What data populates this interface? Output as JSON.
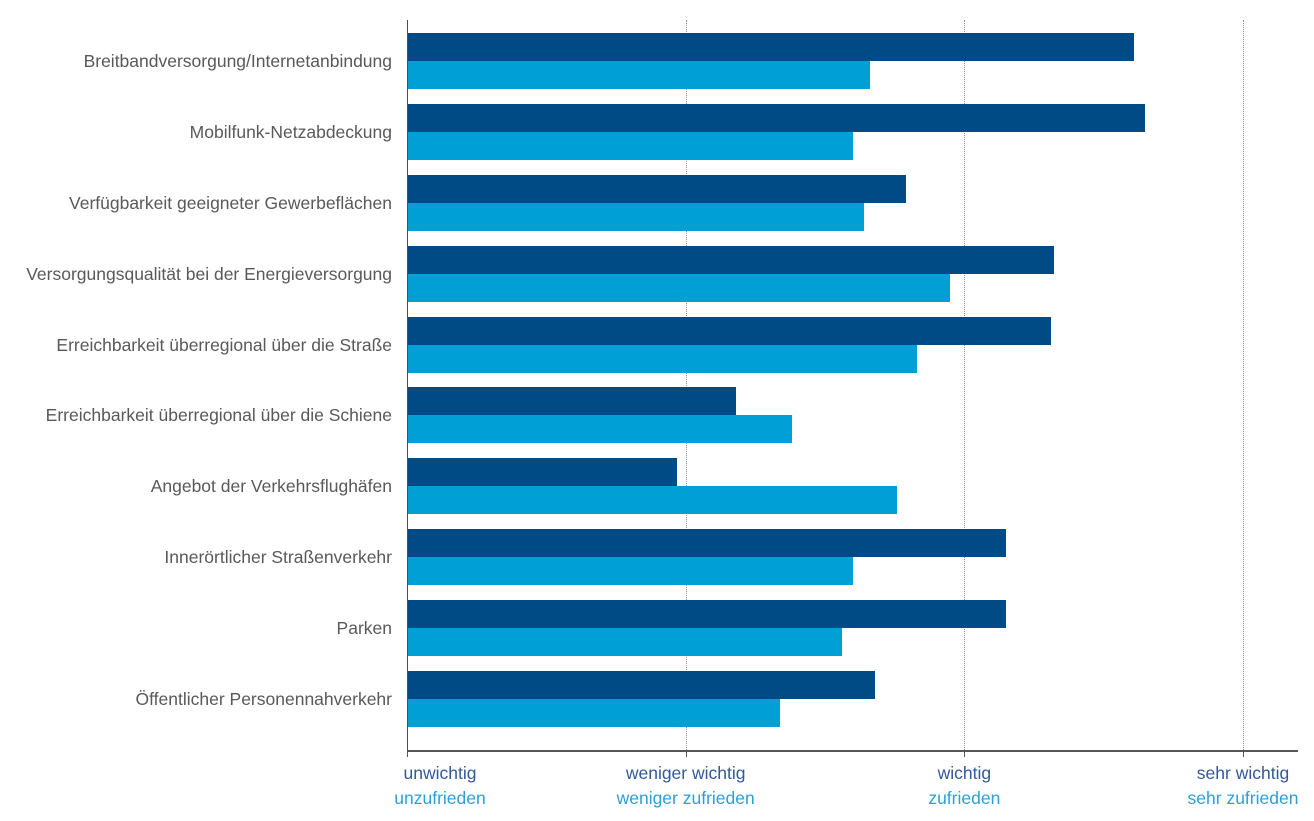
{
  "chart_data": {
    "type": "bar",
    "orientation": "horizontal",
    "title": "",
    "xlabel": "",
    "ylabel": "",
    "grid": "vertical-dotted",
    "legend_position": "none",
    "scale": {
      "min": 1,
      "max": 4
    },
    "categories": [
      "Breitbandversorgung/Internetanbindung",
      "Mobilfunk-Netzabdeckung",
      "Verfügbarkeit geeigneter Gewerbeflächen",
      "Versorgungsqualität bei der Energieversorgung",
      "Erreichbarkeit überregional über die Straße",
      "Erreichbarkeit überregional über die Schiene",
      "Angebot der Verkehrsflughäfen",
      "Innerörtlicher Straßenverkehr",
      "Parken",
      "Öffentlicher Personennahverkehr"
    ],
    "series": [
      {
        "name": "importance",
        "color": "#004b85",
        "values": [
          3.61,
          3.65,
          2.79,
          3.32,
          3.31,
          2.18,
          1.97,
          3.15,
          3.15,
          2.68
        ]
      },
      {
        "name": "satisfaction",
        "color": "#009fd6",
        "values": [
          2.66,
          2.6,
          2.64,
          2.95,
          2.83,
          2.38,
          2.76,
          2.6,
          2.56,
          2.34
        ]
      }
    ],
    "axis_ticks": [
      {
        "value": 1,
        "importance": "unwichtig",
        "satisfaction": "unzufrieden"
      },
      {
        "value": 2,
        "importance": "weniger wichtig",
        "satisfaction": "weniger zufrieden"
      },
      {
        "value": 3,
        "importance": "wichtig",
        "satisfaction": "zufrieden"
      },
      {
        "value": 4,
        "importance": "sehr wichtig",
        "satisfaction": "sehr zufrieden"
      }
    ]
  },
  "colors": {
    "importance_bar": "#004b85",
    "satisfaction_bar": "#009fd6",
    "importance_label": "#33599c",
    "satisfaction_label": "#2e9fd9",
    "category_label": "#58595b",
    "axis_line": "#55555c",
    "gridline": "#8f8f8f",
    "background": "#ffffff"
  }
}
